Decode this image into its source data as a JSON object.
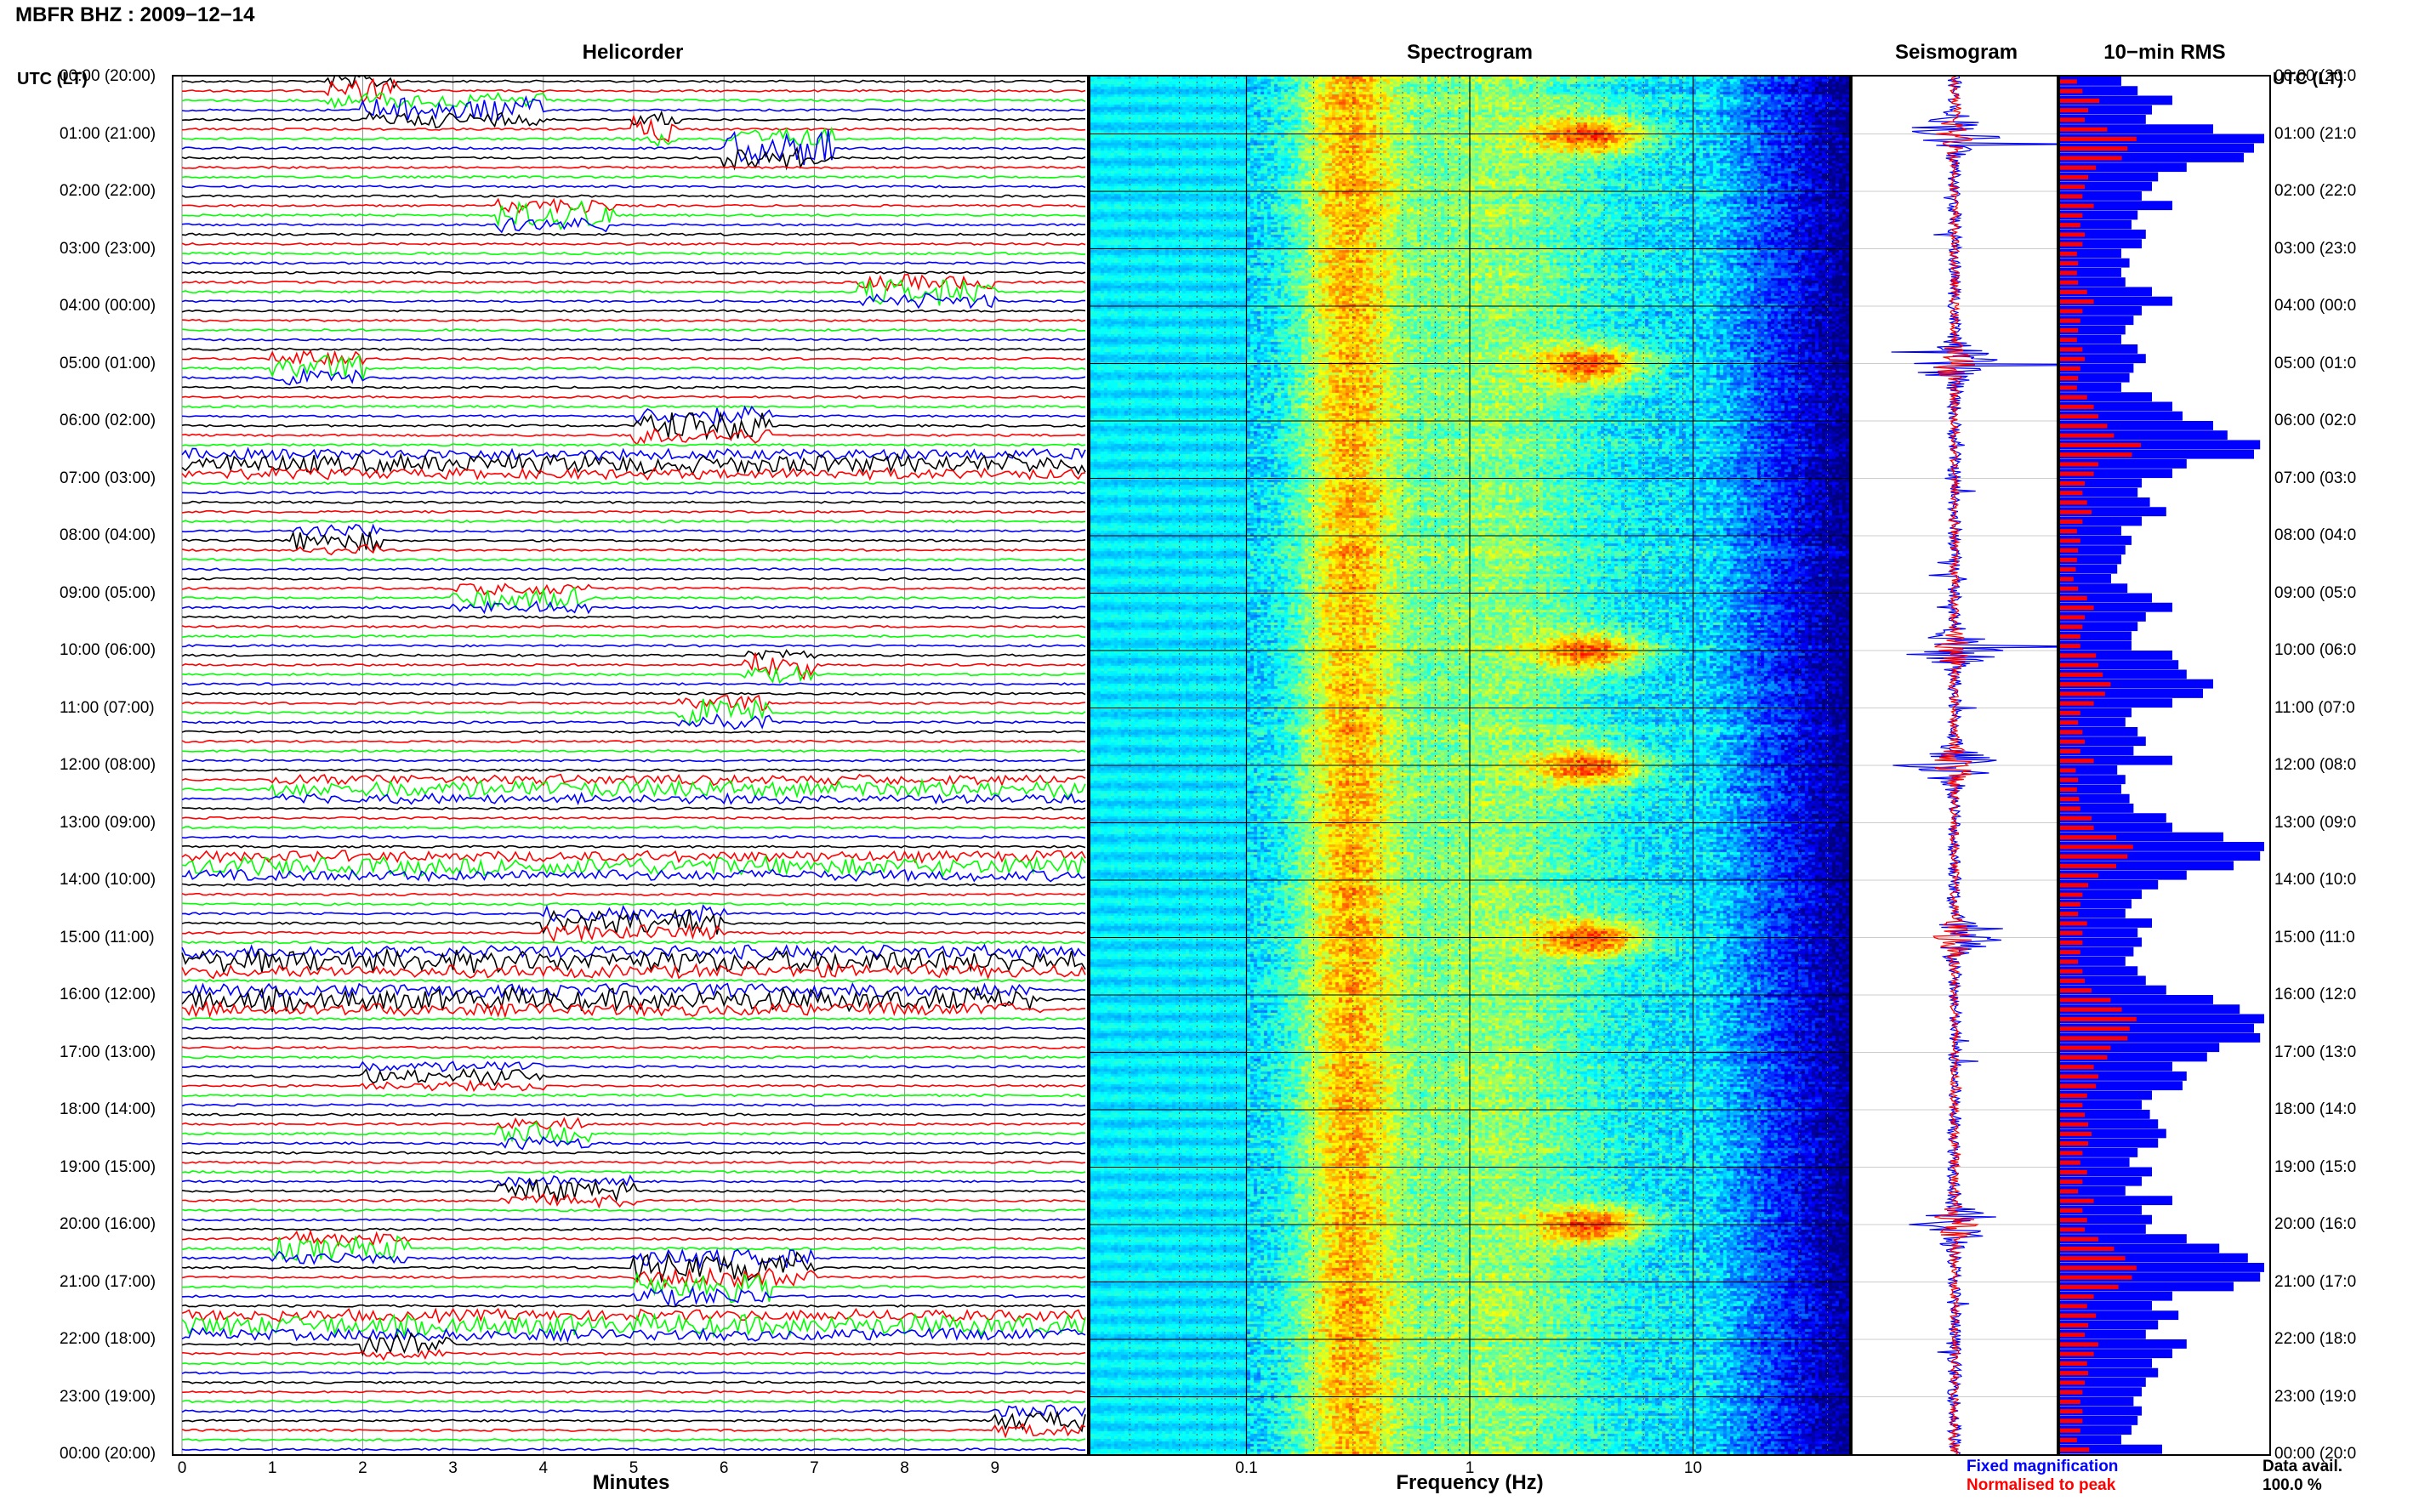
{
  "header": {
    "title": "MBFR BHZ : 2009−12−14"
  },
  "panels": {
    "helicorder": "Helicorder",
    "spectrogram": "Spectrogram",
    "seismogram": "Seismogram",
    "rms": "10−min RMS"
  },
  "time_axis": {
    "header": "UTC (LT)",
    "labels": [
      "00:00 (20:00)",
      "01:00 (21:00)",
      "02:00 (22:00)",
      "03:00 (23:00)",
      "04:00 (00:00)",
      "05:00 (01:00)",
      "06:00 (02:00)",
      "07:00 (03:00)",
      "08:00 (04:00)",
      "09:00 (05:00)",
      "10:00 (06:00)",
      "11:00 (07:00)",
      "12:00 (08:00)",
      "13:00 (09:00)",
      "14:00 (10:00)",
      "15:00 (11:00)",
      "16:00 (12:00)",
      "17:00 (13:00)",
      "18:00 (14:00)",
      "19:00 (15:00)",
      "20:00 (16:00)",
      "21:00 (17:00)",
      "22:00 (18:00)",
      "23:00 (19:00)",
      "00:00 (20:00)"
    ],
    "right_labels": [
      "00:00 (20:0",
      "01:00 (21:0",
      "02:00 (22:0",
      "03:00 (23:0",
      "04:00 (00:0",
      "05:00 (01:0",
      "06:00 (02:0",
      "07:00 (03:0",
      "08:00 (04:0",
      "09:00 (05:0",
      "10:00 (06:0",
      "11:00 (07:0",
      "12:00 (08:0",
      "13:00 (09:0",
      "14:00 (10:0",
      "15:00 (11:0",
      "16:00 (12:0",
      "17:00 (13:0",
      "18:00 (14:0",
      "19:00 (15:0",
      "20:00 (16:0",
      "21:00 (17:0",
      "22:00 (18:0",
      "23:00 (19:0",
      "00:00 (20:0"
    ]
  },
  "colors": {
    "black": "#000000",
    "red": "#ff0000",
    "green": "#00ff00",
    "blue": "#0000ff"
  },
  "chart_data": [
    {
      "type": "line",
      "panel": "Helicorder",
      "xlabel": "Minutes",
      "x_ticks": [
        "0",
        "1",
        "2",
        "3",
        "4",
        "5",
        "6",
        "7",
        "8",
        "9"
      ],
      "xlim": [
        0,
        10
      ],
      "rows": 144,
      "row_minutes": 10,
      "trace_colors": [
        "#000000",
        "#ff0000",
        "#00ff00",
        "#0000ff"
      ]
    },
    {
      "type": "heatmap",
      "panel": "Spectrogram",
      "xlabel": "Frequency (Hz)",
      "x_scale": "log",
      "x_ticks": [
        "0.1",
        "1",
        "10"
      ],
      "xlim": [
        0.02,
        50
      ],
      "peak_bands_hz": [
        0.28,
        3.5
      ],
      "high_energy_hours_utc": [
        1,
        5,
        10,
        12,
        15,
        20
      ]
    },
    {
      "type": "line",
      "panel": "Seismogram",
      "series": [
        {
          "name": "Fixed magnification",
          "color": "#0000ff"
        },
        {
          "name": "Normalised to peak",
          "color": "#ff0000"
        }
      ]
    },
    {
      "type": "bar",
      "panel": "10−min RMS",
      "orientation": "horizontal",
      "xlim": [
        0,
        1
      ],
      "blue_values": [
        0.3,
        0.38,
        0.55,
        0.45,
        0.42,
        0.75,
        1.0,
        0.95,
        0.9,
        0.62,
        0.48,
        0.45,
        0.4,
        0.55,
        0.38,
        0.35,
        0.42,
        0.4,
        0.3,
        0.34,
        0.3,
        0.32,
        0.45,
        0.55,
        0.4,
        0.36,
        0.32,
        0.3,
        0.38,
        0.42,
        0.36,
        0.34,
        0.3,
        0.45,
        0.55,
        0.6,
        0.75,
        0.82,
        0.98,
        0.95,
        0.62,
        0.55,
        0.4,
        0.38,
        0.44,
        0.52,
        0.4,
        0.3,
        0.35,
        0.32,
        0.3,
        0.28,
        0.25,
        0.33,
        0.45,
        0.55,
        0.42,
        0.38,
        0.35,
        0.35,
        0.55,
        0.58,
        0.62,
        0.75,
        0.7,
        0.55,
        0.35,
        0.32,
        0.38,
        0.42,
        0.36,
        0.55,
        0.28,
        0.32,
        0.3,
        0.34,
        0.36,
        0.52,
        0.55,
        0.8,
        1.0,
        0.98,
        0.85,
        0.62,
        0.48,
        0.4,
        0.35,
        0.32,
        0.45,
        0.38,
        0.4,
        0.36,
        0.32,
        0.38,
        0.42,
        0.52,
        0.75,
        0.88,
        1.0,
        0.95,
        0.98,
        0.78,
        0.72,
        0.55,
        0.62,
        0.6,
        0.45,
        0.4,
        0.44,
        0.48,
        0.52,
        0.48,
        0.38,
        0.34,
        0.45,
        0.4,
        0.32,
        0.55,
        0.4,
        0.45,
        0.42,
        0.62,
        0.78,
        0.92,
        1.0,
        0.98,
        0.85,
        0.55,
        0.45,
        0.58,
        0.48,
        0.42,
        0.62,
        0.55,
        0.45,
        0.48,
        0.42,
        0.4,
        0.36,
        0.4,
        0.38,
        0.35,
        0.3,
        0.5
      ],
      "red_values": [
        0.15,
        0.2,
        0.35,
        0.25,
        0.22,
        0.42,
        0.68,
        0.6,
        0.55,
        0.32,
        0.25,
        0.22,
        0.2,
        0.3,
        0.2,
        0.18,
        0.22,
        0.2,
        0.15,
        0.16,
        0.15,
        0.16,
        0.24,
        0.3,
        0.2,
        0.18,
        0.16,
        0.15,
        0.2,
        0.22,
        0.18,
        0.16,
        0.15,
        0.24,
        0.3,
        0.34,
        0.42,
        0.48,
        0.72,
        0.64,
        0.34,
        0.3,
        0.22,
        0.2,
        0.24,
        0.28,
        0.2,
        0.15,
        0.18,
        0.16,
        0.15,
        0.14,
        0.12,
        0.16,
        0.24,
        0.3,
        0.22,
        0.2,
        0.18,
        0.18,
        0.32,
        0.34,
        0.38,
        0.45,
        0.4,
        0.3,
        0.18,
        0.16,
        0.2,
        0.22,
        0.18,
        0.3,
        0.14,
        0.16,
        0.15,
        0.17,
        0.18,
        0.28,
        0.3,
        0.5,
        0.65,
        0.6,
        0.5,
        0.34,
        0.25,
        0.2,
        0.18,
        0.16,
        0.24,
        0.2,
        0.2,
        0.18,
        0.16,
        0.2,
        0.22,
        0.28,
        0.45,
        0.55,
        0.68,
        0.62,
        0.6,
        0.45,
        0.42,
        0.3,
        0.34,
        0.32,
        0.24,
        0.2,
        0.22,
        0.25,
        0.28,
        0.25,
        0.2,
        0.18,
        0.24,
        0.2,
        0.16,
        0.3,
        0.2,
        0.24,
        0.22,
        0.34,
        0.48,
        0.58,
        0.68,
        0.64,
        0.52,
        0.3,
        0.24,
        0.32,
        0.25,
        0.22,
        0.34,
        0.3,
        0.24,
        0.25,
        0.22,
        0.2,
        0.18,
        0.2,
        0.2,
        0.18,
        0.15,
        0.26
      ]
    }
  ],
  "footer": {
    "legend_fixed": "Fixed magnification",
    "legend_norm": "Normalised to peak",
    "data_avail_label": "Data avail.",
    "data_avail_value": "100.0 %"
  }
}
